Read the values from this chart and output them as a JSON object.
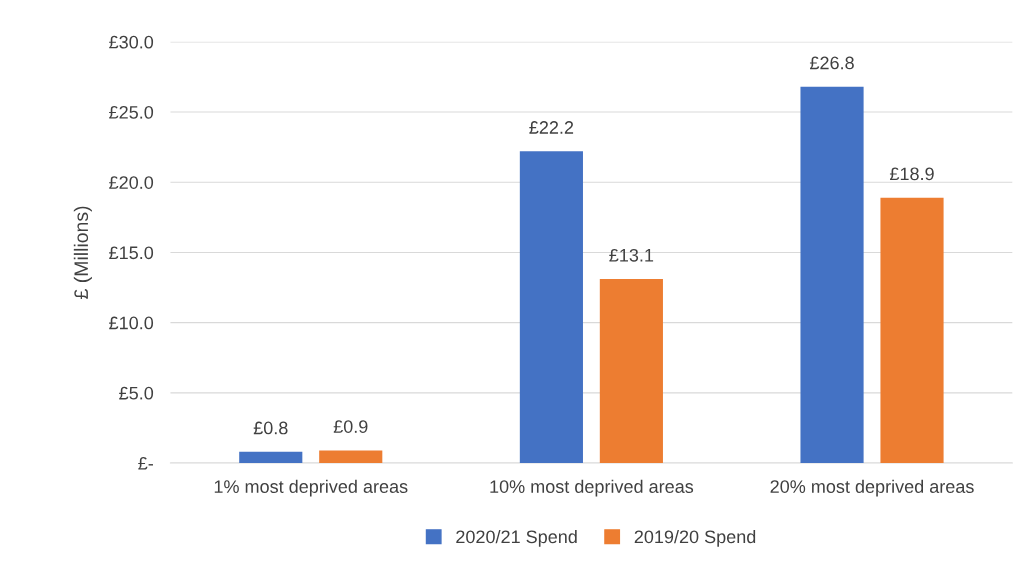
{
  "chart_data": {
    "type": "bar",
    "ylabel": "£ (Millions)",
    "categories": [
      "1% most deprived areas",
      "10% most deprived areas",
      "20% most deprived areas"
    ],
    "series": [
      {
        "name": "2020/21 Spend",
        "color": "#4472c4",
        "values": [
          0.8,
          22.2,
          26.8
        ],
        "value_labels": [
          "£0.8",
          "£22.2",
          "£26.8"
        ]
      },
      {
        "name": "2019/20 Spend",
        "color": "#ed7d31",
        "values": [
          0.9,
          13.1,
          18.9
        ],
        "value_labels": [
          "£0.9",
          "£13.1",
          "£18.9"
        ]
      }
    ],
    "ylim": [
      0,
      30
    ],
    "yticks": [
      {
        "value": 0,
        "label": "£-"
      },
      {
        "value": 5,
        "label": "£5.0"
      },
      {
        "value": 10,
        "label": "£10.0"
      },
      {
        "value": 15,
        "label": "£15.0"
      },
      {
        "value": 20,
        "label": "£20.0"
      },
      {
        "value": 25,
        "label": "£25.0"
      },
      {
        "value": 30,
        "label": "£30.0"
      }
    ],
    "grid": "y",
    "legend": "bottom"
  }
}
